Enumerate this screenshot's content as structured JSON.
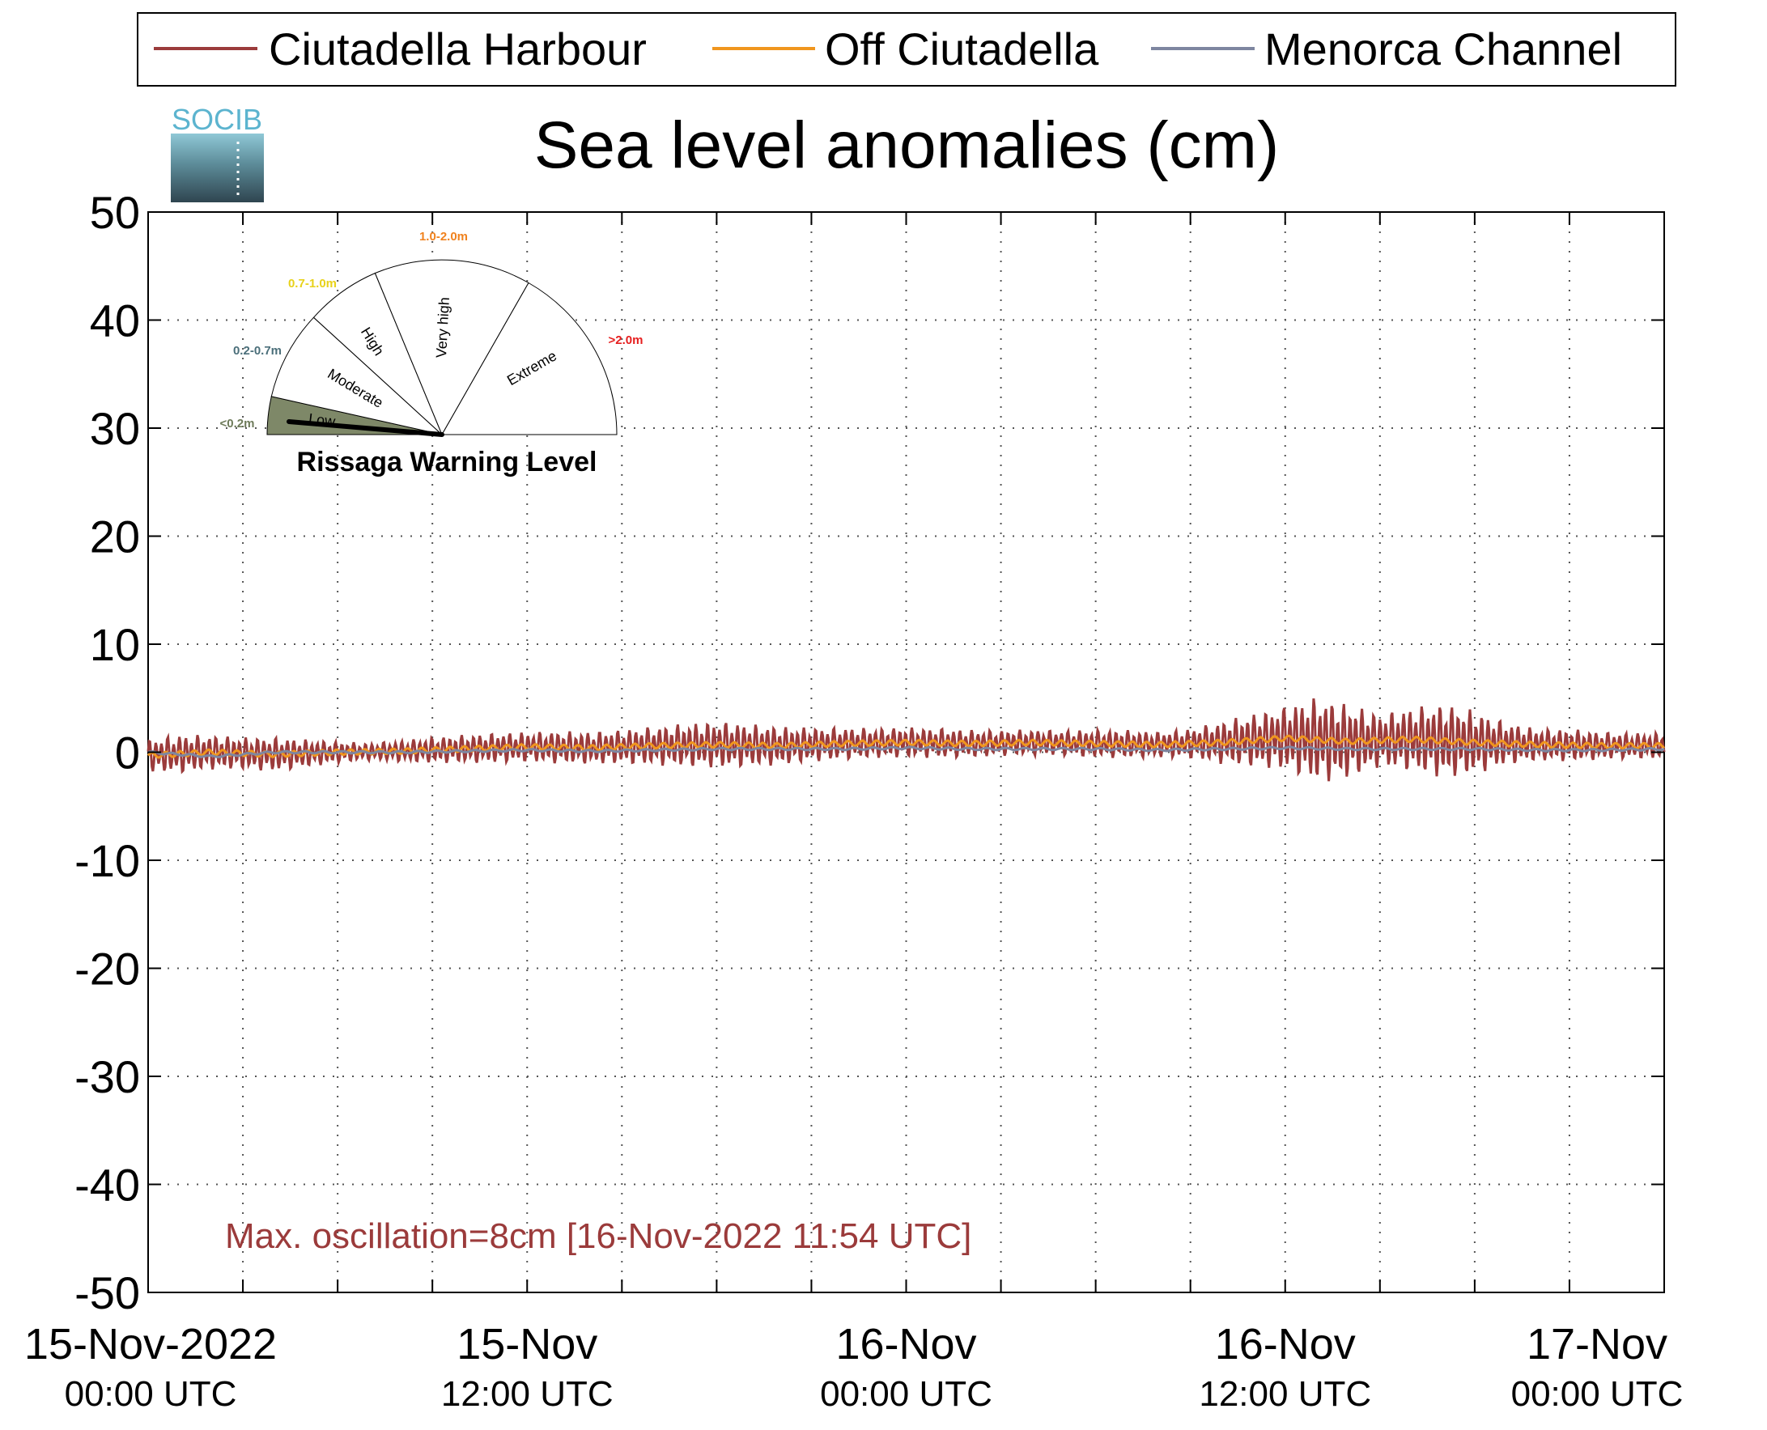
{
  "chart_data": {
    "type": "line",
    "title": "Sea level anomalies (cm)",
    "logo_text": "SOCIB",
    "ylim": [
      -50,
      50
    ],
    "yticks": [
      50,
      40,
      30,
      20,
      10,
      0,
      -10,
      -20,
      -30,
      -40,
      -50
    ],
    "xlim_hours": [
      0,
      48
    ],
    "x_ticks": [
      {
        "hour": 0,
        "line1": "15-Nov-2022",
        "line2": "00:00 UTC"
      },
      {
        "hour": 12,
        "line1": "15-Nov",
        "line2": "12:00 UTC"
      },
      {
        "hour": 24,
        "line1": "16-Nov",
        "line2": "00:00 UTC"
      },
      {
        "hour": 36,
        "line1": "16-Nov",
        "line2": "12:00 UTC"
      },
      {
        "hour": 48,
        "line1": "17-Nov",
        "line2": "00:00 UTC"
      }
    ],
    "grid": true,
    "legend_position": "top",
    "series": [
      {
        "name": "Ciutadella Harbour",
        "color": "#9b3b3b",
        "x": [
          0,
          1,
          2,
          3,
          4,
          5,
          6,
          7,
          8,
          9,
          10,
          11,
          12,
          13,
          14,
          15,
          16,
          17,
          18,
          19,
          20,
          21,
          22,
          23,
          24,
          25,
          26,
          27,
          28,
          29,
          30,
          31,
          32,
          33,
          34,
          35,
          36,
          37,
          38,
          39,
          40,
          41,
          42,
          43,
          44,
          45,
          46,
          47,
          48
        ],
        "amplitude": [
          1.5,
          1.8,
          1.6,
          1.5,
          1.6,
          1.3,
          1.0,
          0.8,
          1.0,
          1.2,
          1.3,
          1.4,
          1.4,
          1.5,
          1.5,
          1.6,
          1.8,
          2.0,
          2.2,
          2.0,
          1.8,
          1.6,
          1.5,
          1.4,
          1.4,
          1.4,
          1.3,
          1.2,
          1.2,
          1.2,
          1.3,
          1.3,
          1.2,
          1.4,
          2.0,
          2.5,
          3.0,
          4.0,
          3.5,
          2.5,
          3.0,
          3.5,
          3.0,
          2.0,
          1.5,
          1.5,
          1.3,
          1.2,
          1.2
        ]
      },
      {
        "name": "Off Ciutadella",
        "color": "#f0961e",
        "x": [
          0,
          2,
          4,
          6,
          8,
          10,
          12,
          14,
          16,
          18,
          20,
          22,
          24,
          26,
          28,
          30,
          32,
          34,
          36,
          38,
          40,
          42,
          44,
          46,
          48
        ],
        "y": [
          -0.3,
          0.0,
          -0.2,
          0.0,
          0.1,
          0.3,
          0.5,
          0.4,
          0.6,
          0.7,
          0.6,
          0.8,
          0.9,
          0.8,
          0.9,
          0.8,
          0.7,
          0.9,
          1.3,
          1.0,
          1.2,
          0.9,
          0.7,
          0.6,
          0.6
        ]
      },
      {
        "name": "Menorca Channel",
        "color": "#7e86a0",
        "x": [
          0,
          2,
          4,
          6,
          8,
          10,
          12,
          14,
          16,
          18,
          20,
          22,
          24,
          26,
          28,
          30,
          32,
          34,
          36,
          38,
          40,
          42,
          44,
          46,
          48
        ],
        "y": [
          0.0,
          -0.4,
          0.0,
          0.0,
          0.0,
          0.1,
          0.2,
          0.1,
          0.2,
          0.3,
          0.3,
          0.3,
          0.4,
          0.3,
          0.3,
          0.3,
          0.2,
          0.3,
          0.4,
          0.3,
          0.3,
          0.3,
          0.2,
          0.2,
          0.3
        ]
      }
    ],
    "annotation": "Max. oscillation=8cm [16-Nov-2022 11:54 UTC]",
    "gauge": {
      "title": "Rissaga Warning Level",
      "current_level": "Low",
      "sectors": [
        {
          "name": "Low",
          "range": "<0.2m",
          "color": "#6e7b5a"
        },
        {
          "name": "Moderate",
          "range": "0.2-0.7m",
          "color": "#4b6f7a"
        },
        {
          "name": "High",
          "range": "0.7-1.0m",
          "color": "#f5e11e"
        },
        {
          "name": "Very high",
          "range": "1.0-2.0m",
          "color": "#f0821e"
        },
        {
          "name": "Extreme",
          "range": ">2.0m",
          "color": "#e61e1e"
        }
      ]
    }
  }
}
